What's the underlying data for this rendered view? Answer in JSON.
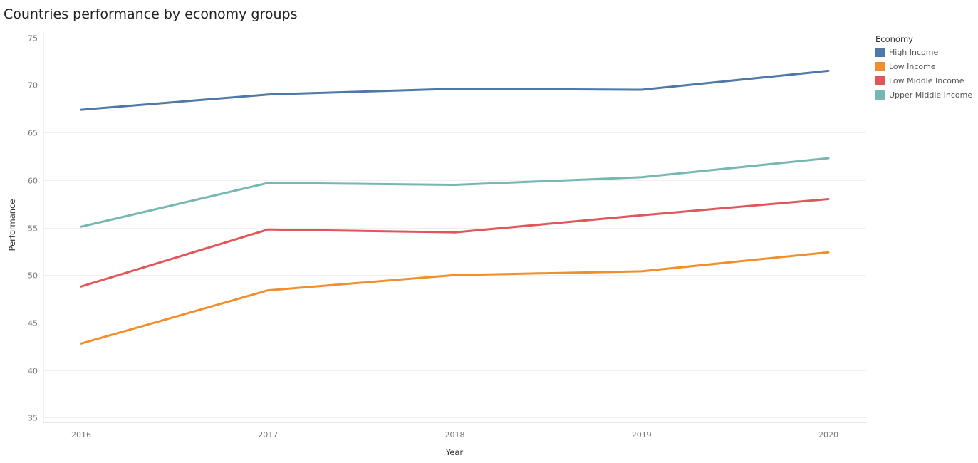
{
  "chart_data": {
    "type": "line",
    "title": "Countries performance by economy groups",
    "xlabel": "Year",
    "ylabel": "Performance",
    "x": [
      "2016",
      "2017",
      "2018",
      "2019",
      "2020"
    ],
    "ylim": [
      34.5,
      75.5
    ],
    "yticks": [
      "35",
      "40",
      "45",
      "50",
      "55",
      "60",
      "65",
      "70",
      "75"
    ],
    "grid": "horizontal",
    "legend": {
      "title": "Economy",
      "placement": "right"
    },
    "series": [
      {
        "name": "High Income",
        "color": "#4e79a7",
        "values": [
          67.4,
          69.0,
          69.6,
          69.5,
          71.5
        ]
      },
      {
        "name": "Low Income",
        "color": "#f28e2b",
        "values": [
          42.8,
          48.4,
          50.0,
          50.4,
          52.4
        ]
      },
      {
        "name": "Low Middle Income",
        "color": "#e15759",
        "values": [
          48.8,
          54.8,
          54.5,
          56.3,
          58.0
        ]
      },
      {
        "name": "Upper Middle Income",
        "color": "#76b7b2",
        "values": [
          55.1,
          59.7,
          59.5,
          60.3,
          62.3
        ]
      }
    ]
  }
}
